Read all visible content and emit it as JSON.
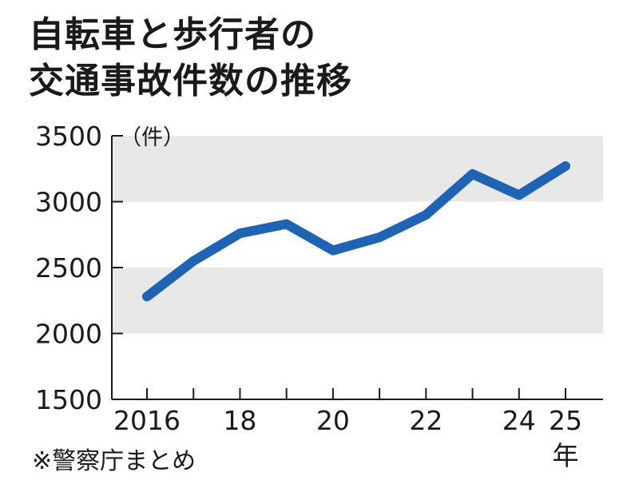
{
  "title_line1": "自転車と歩行者の",
  "title_line2": "交通事故件数の推移",
  "source": "※警察庁まとめ",
  "colors": {
    "line": "#1f64b4",
    "band": "#e8e8e8",
    "axis": "#1a1a1a"
  },
  "chart_data": {
    "type": "line",
    "title": "自転車と歩行者の交通事故件数の推移",
    "y_unit_label": "（件）",
    "x_unit_label": "年",
    "ylim": [
      1500,
      3500
    ],
    "yticks": [
      1500,
      2000,
      2500,
      3000,
      3500
    ],
    "x": [
      2016,
      2017,
      2018,
      2019,
      2020,
      2021,
      2022,
      2023,
      2024,
      2025
    ],
    "xtick_labels": [
      {
        "x": 2016,
        "label": "2016"
      },
      {
        "x": 2018,
        "label": "18"
      },
      {
        "x": 2020,
        "label": "20"
      },
      {
        "x": 2022,
        "label": "22"
      },
      {
        "x": 2024,
        "label": "24"
      },
      {
        "x": 2025,
        "label": "25"
      }
    ],
    "series": [
      {
        "values": [
          2280,
          2550,
          2760,
          2830,
          2630,
          2730,
          2900,
          3210,
          3050,
          3270
        ]
      }
    ]
  }
}
